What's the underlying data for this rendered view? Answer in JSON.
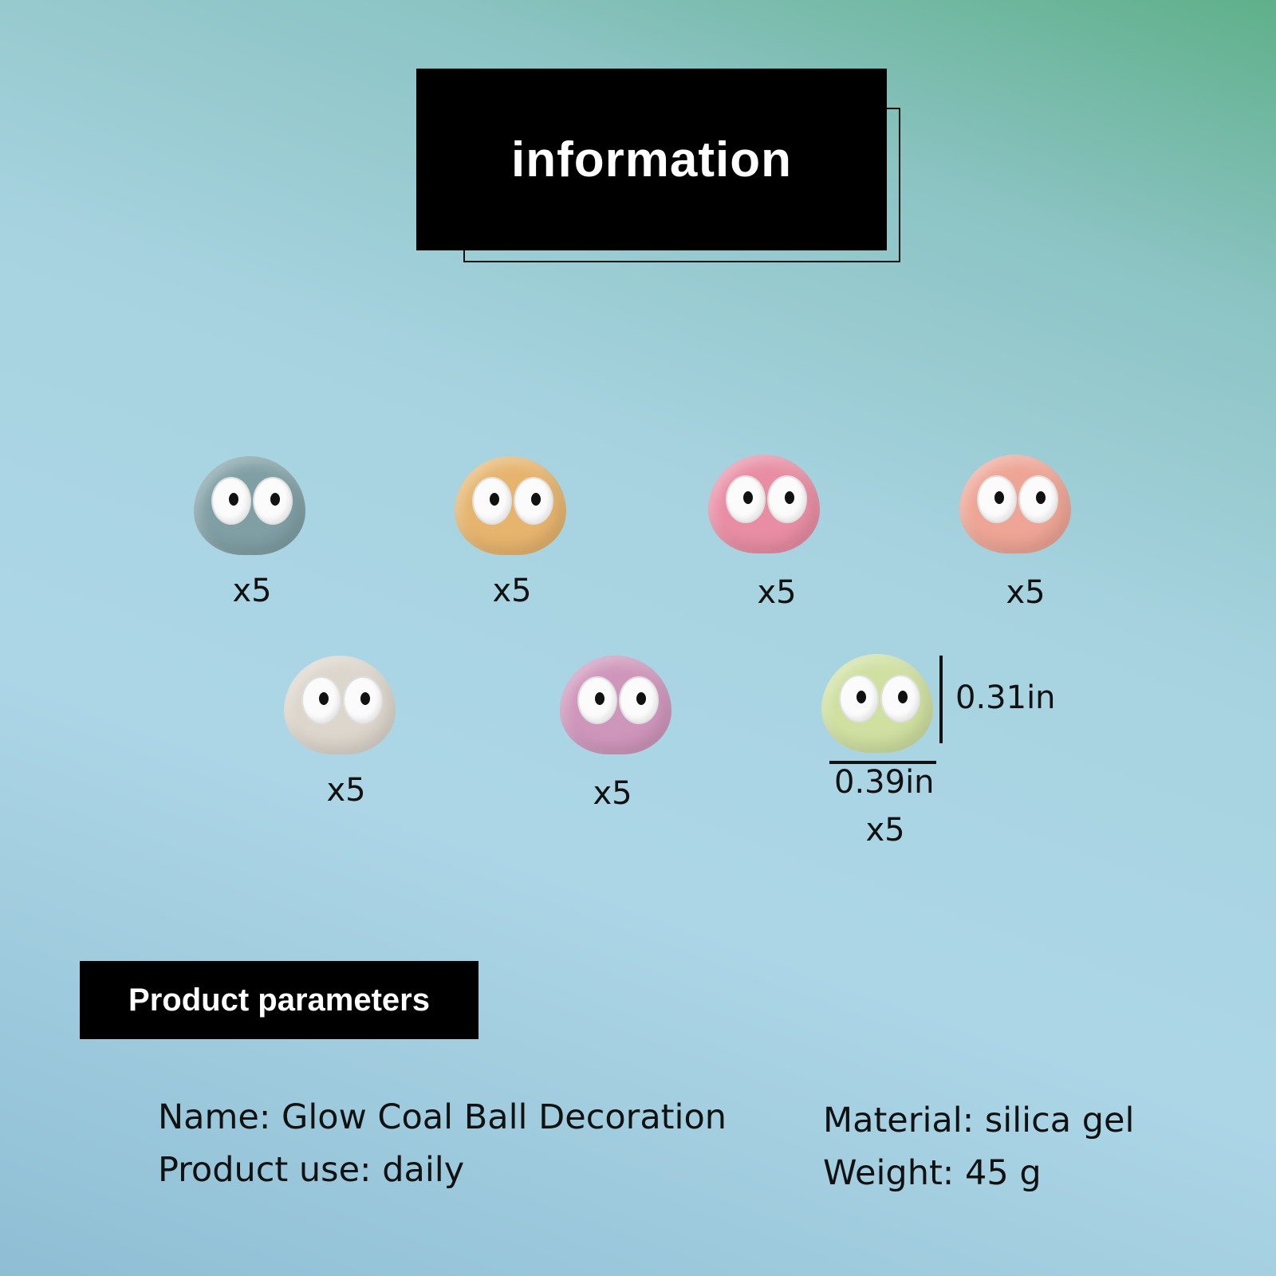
{
  "header": {
    "title": "information"
  },
  "products": [
    {
      "color": "#7f9fa4",
      "quantity": "x5"
    },
    {
      "color": "#e6b46d",
      "quantity": "x5"
    },
    {
      "color": "#e98da4",
      "quantity": "x5"
    },
    {
      "color": "#eea595",
      "quantity": "x5"
    },
    {
      "color": "#dcd6cc",
      "quantity": "x5"
    },
    {
      "color": "#cf96bb",
      "quantity": "x5"
    },
    {
      "color": "#cfe0a0",
      "quantity": "x5"
    }
  ],
  "dimensions": {
    "height": "0.31in",
    "width": "0.39in"
  },
  "parameters": {
    "title": "Product parameters",
    "name": "Name: Glow Coal Ball Decoration",
    "use": "Product use: daily",
    "material": "Material: silica gel",
    "weight": "Weight: 45 g"
  }
}
